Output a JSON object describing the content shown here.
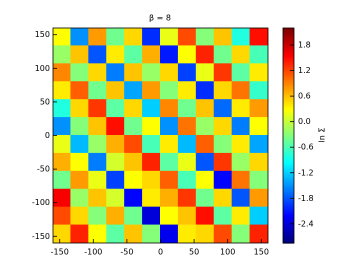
{
  "chart_data": {
    "type": "heatmap",
    "title": "β = 8",
    "colorbar_label": "ln Σ",
    "colormap": "jet",
    "xlim": [
      -160,
      160
    ],
    "ylim": [
      -160,
      160
    ],
    "xticks": [
      -150,
      -100,
      -50,
      0,
      50,
      100,
      150
    ],
    "yticks": [
      -150,
      -100,
      -50,
      0,
      50,
      100,
      150
    ],
    "clim": [
      -2.85,
      2.2
    ],
    "cticks": [
      1.8,
      1.2,
      0.6,
      {
        "value": 0,
        "label": "0.0"
      },
      -0.6,
      -1.2,
      -1.8,
      -2.4
    ],
    "z": [
      [
        0.3,
        -1.5,
        0.8,
        -0.4,
        0.5,
        -2.0,
        0.2,
        1.2,
        -0.3,
        0.6,
        -0.8,
        1.5
      ],
      [
        -0.2,
        0.6,
        -1.8,
        0.4,
        -0.5,
        0.7,
        -2.1,
        0.3,
        1.4,
        -0.4,
        0.5,
        -0.6
      ],
      [
        0.9,
        -0.3,
        0.5,
        -1.6,
        0.6,
        -0.2,
        0.5,
        -1.9,
        0.2,
        1.3,
        -0.5,
        0.4
      ],
      [
        0.4,
        1.1,
        -0.4,
        0.6,
        -1.4,
        0.8,
        -0.3,
        0.4,
        -2.0,
        0.5,
        1.0,
        -0.7
      ],
      [
        -0.8,
        0.5,
        1.3,
        -0.5,
        0.5,
        -1.2,
        0.9,
        -0.4,
        0.6,
        -1.7,
        0.4,
        0.8
      ],
      [
        -1.5,
        -0.3,
        0.6,
        1.5,
        -0.4,
        0.3,
        -1.5,
        1.0,
        -0.2,
        0.5,
        -1.6,
        0.3
      ],
      [
        0.2,
        -1.3,
        -0.2,
        0.7,
        1.2,
        -0.6,
        0.4,
        -1.3,
        1.1,
        -0.3,
        0.4,
        -1.4
      ],
      [
        0.7,
        0.3,
        -1.6,
        0.1,
        0.6,
        1.4,
        -0.5,
        0.2,
        -1.8,
        1.3,
        -0.2,
        0.5
      ],
      [
        -0.4,
        0.8,
        0.2,
        -1.9,
        0.3,
        0.5,
        1.1,
        -0.6,
        0.3,
        -2.2,
        1.0,
        -0.3
      ],
      [
        1.6,
        -0.2,
        0.6,
        0.1,
        -2.2,
        0.4,
        0.7,
        1.3,
        -0.4,
        0.5,
        -1.8,
        0.8
      ],
      [
        1.2,
        0.5,
        -0.3,
        0.7,
        -0.4,
        -2.4,
        0.3,
        0.6,
        1.5,
        -0.5,
        0.4,
        -1.2
      ],
      [
        0.5,
        1.4,
        0.3,
        -0.5,
        0.6,
        -0.3,
        -2.3,
        0.4,
        0.5,
        1.2,
        -0.3,
        1.4
      ]
    ]
  }
}
